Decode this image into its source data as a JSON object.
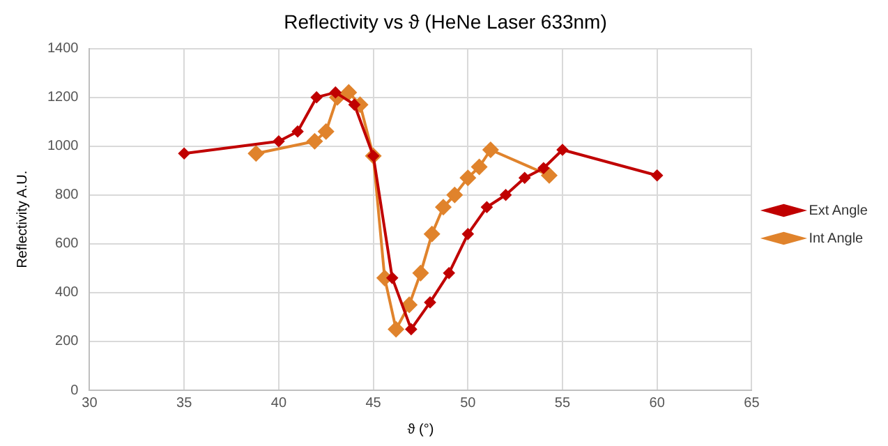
{
  "chart_data": {
    "type": "line",
    "title": "Reflectivity vs ϑ (HeNe Laser 633nm)",
    "xlabel": "ϑ (°)",
    "ylabel": "Reflectivity A.U.",
    "xlim": [
      30,
      65
    ],
    "xticks": [
      30,
      35,
      40,
      45,
      50,
      55,
      60,
      65
    ],
    "ylim": [
      0,
      1400
    ],
    "yticks": [
      0,
      200,
      400,
      600,
      800,
      1000,
      1200,
      1400
    ],
    "grid": true,
    "legend": "right",
    "marker": "diamond",
    "line_style": "solid",
    "series": [
      {
        "name": "Ext Angle",
        "color": "#c00000",
        "x": [
          35,
          40,
          41,
          42,
          43,
          44,
          45,
          46,
          47,
          48,
          49,
          50,
          51,
          52,
          53,
          54,
          55,
          60
        ],
        "values": [
          970,
          1020,
          1060,
          1200,
          1220,
          1170,
          960,
          460,
          250,
          360,
          480,
          640,
          750,
          800,
          870,
          910,
          985,
          880
        ]
      },
      {
        "name": "Int Angle",
        "color": "#e0832c",
        "x": [
          38.8,
          41.9,
          42.5,
          43.1,
          43.7,
          44.3,
          45,
          45.6,
          46.2,
          46.9,
          47.5,
          48.1,
          48.7,
          49.3,
          50,
          50.6,
          51.2,
          54.3
        ],
        "values": [
          970,
          1020,
          1060,
          1200,
          1220,
          1170,
          960,
          460,
          250,
          350,
          480,
          640,
          750,
          800,
          870,
          915,
          985,
          880
        ]
      }
    ]
  }
}
